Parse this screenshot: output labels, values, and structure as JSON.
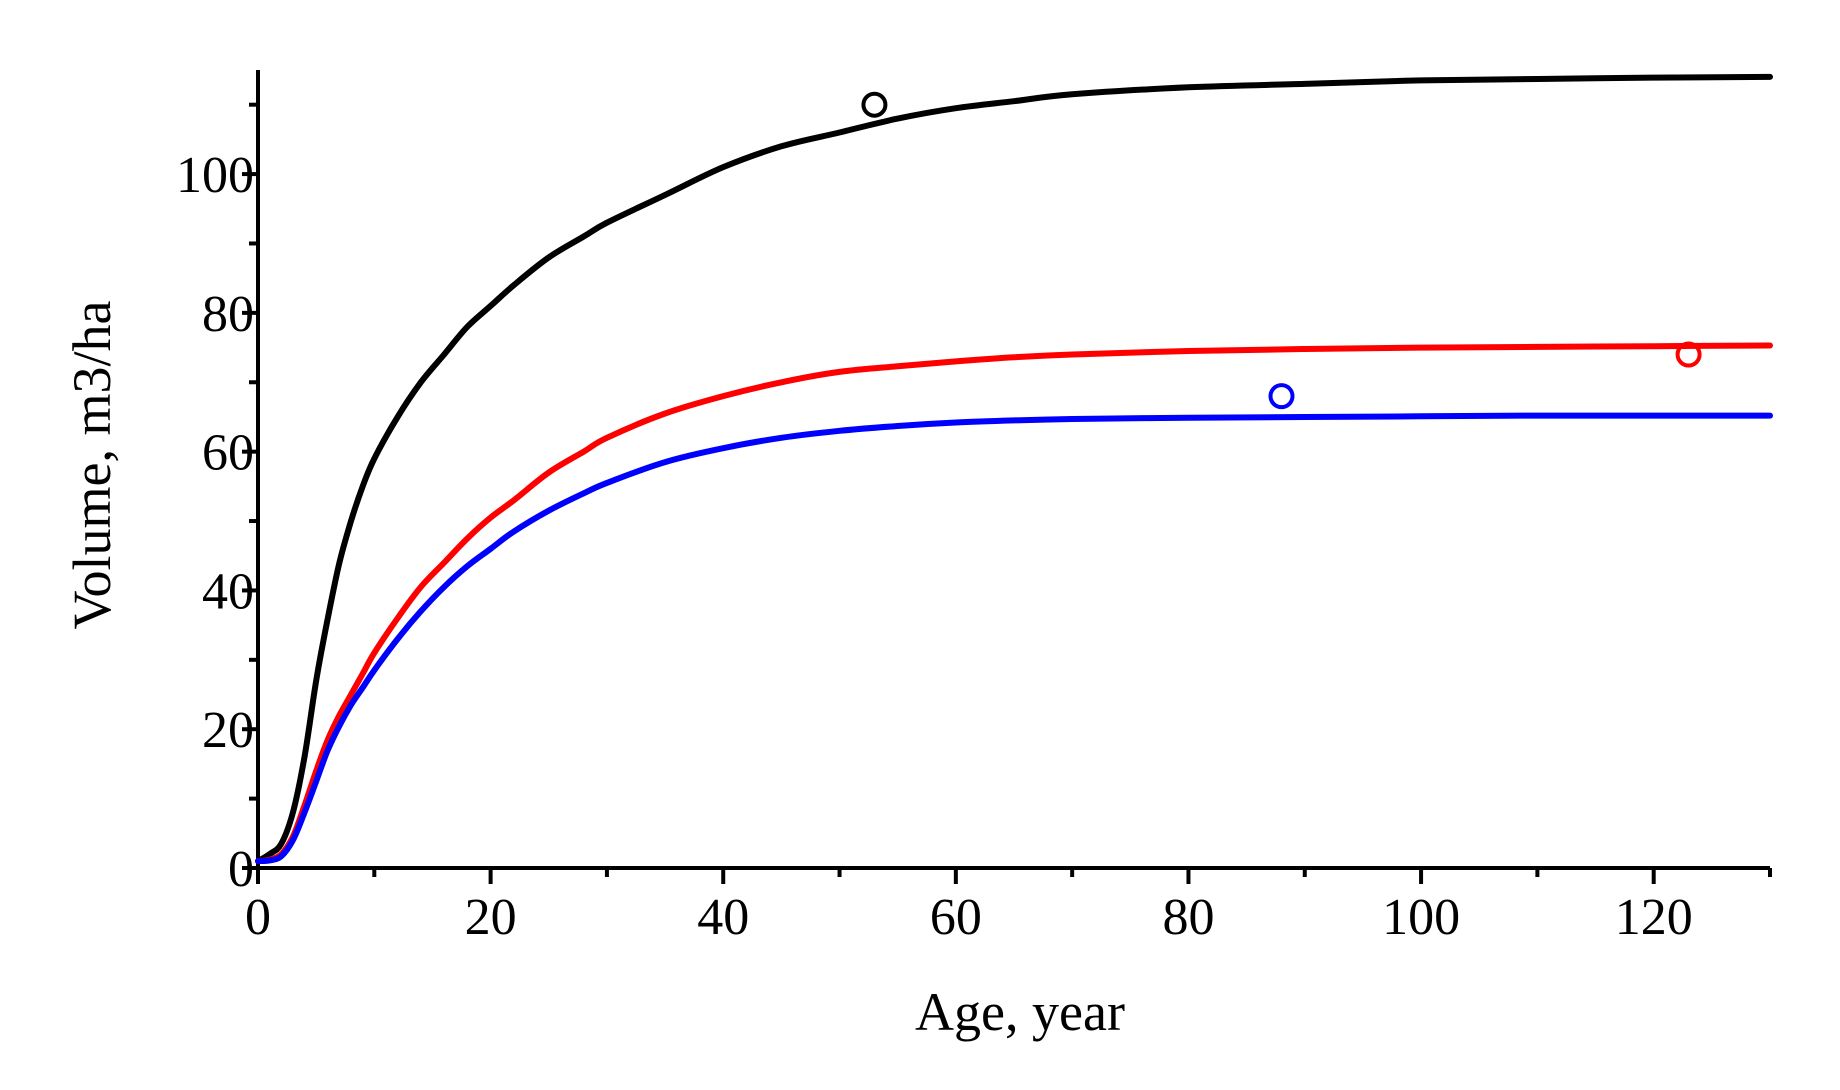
{
  "chart_data": {
    "type": "line",
    "title": "",
    "xlabel": "Age, year",
    "ylabel": "Volume, m3/ha",
    "xlim": [
      0,
      130
    ],
    "ylim": [
      0,
      115
    ],
    "x_ticks": [
      0,
      20,
      40,
      60,
      80,
      100,
      120
    ],
    "x_tick_labels": [
      "0",
      "20",
      "40",
      "60",
      "80",
      "100",
      "120"
    ],
    "y_ticks": [
      0,
      20,
      40,
      60,
      80,
      100
    ],
    "y_tick_labels": [
      "0",
      "20",
      "40",
      "60",
      "80",
      "100"
    ],
    "x_minor_step": 10,
    "y_minor_step": 10,
    "grid": false,
    "legend": "none",
    "x": [
      0,
      1,
      2,
      3,
      4,
      5,
      6,
      7,
      8,
      9,
      10,
      12,
      14,
      16,
      18,
      20,
      22,
      25,
      28,
      30,
      35,
      40,
      45,
      50,
      55,
      60,
      65,
      70,
      80,
      90,
      100,
      110,
      120,
      130
    ],
    "series": [
      {
        "color": "#000000",
        "values": [
          1,
          2,
          3.5,
          8,
          16,
          27,
          36,
          44,
          50,
          55,
          59,
          65,
          70,
          74,
          78,
          81,
          84,
          88,
          91,
          93,
          97,
          101,
          104,
          106,
          108,
          109.5,
          110.5,
          111.5,
          112.5,
          113,
          113.5,
          113.7,
          113.9,
          114
        ],
        "points": [
          {
            "x": 53,
            "y": 110
          }
        ]
      },
      {
        "color": "#ff0000",
        "values": [
          1,
          1.2,
          2,
          4.5,
          9,
          14,
          18.5,
          22,
          25,
          28,
          31,
          36,
          40.5,
          44,
          47.5,
          50.5,
          53,
          57,
          60,
          62,
          65.5,
          68,
          70,
          71.5,
          72.3,
          73,
          73.6,
          74,
          74.5,
          74.8,
          75,
          75.1,
          75.2,
          75.3
        ],
        "points": [
          {
            "x": 123,
            "y": 74
          }
        ]
      },
      {
        "color": "#0000ff",
        "values": [
          1,
          1.1,
          1.7,
          4,
          8,
          12.5,
          17,
          20.5,
          23.5,
          26,
          28.5,
          33,
          37,
          40.5,
          43.5,
          46,
          48.5,
          51.5,
          54,
          55.5,
          58.5,
          60.5,
          62,
          63,
          63.7,
          64.2,
          64.5,
          64.7,
          64.9,
          65,
          65.1,
          65.2,
          65.2,
          65.2
        ],
        "points": [
          {
            "x": 88,
            "y": 68
          }
        ]
      }
    ]
  }
}
